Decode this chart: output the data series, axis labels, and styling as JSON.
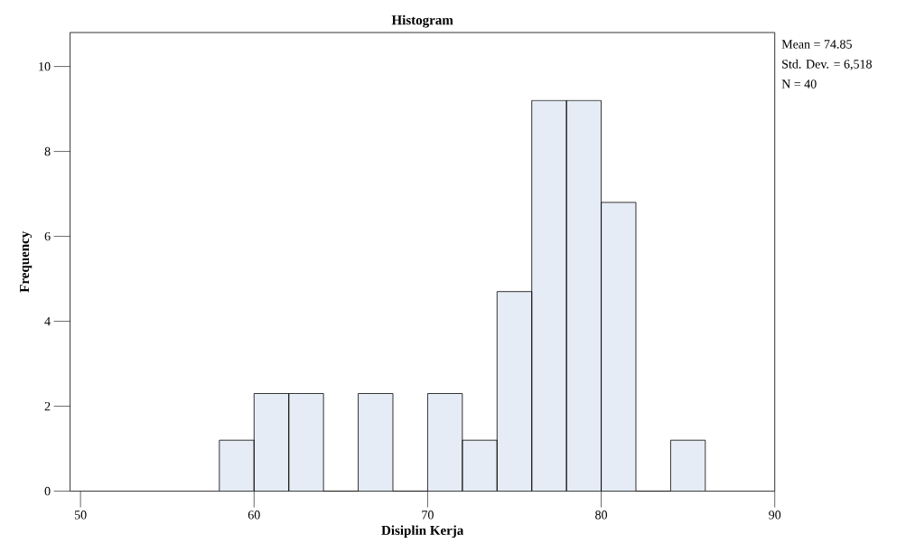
{
  "chart_data": {
    "type": "histogram",
    "title": "Histogram",
    "xlabel": "Disiplin Kerja",
    "ylabel": "Frequency",
    "bins": [
      58,
      60,
      62,
      64,
      66,
      68,
      70,
      72,
      74,
      76,
      78,
      80,
      82,
      84,
      86
    ],
    "values": [
      1.2,
      2.3,
      2.3,
      0,
      2.3,
      0,
      2.3,
      1.2,
      4.7,
      9.2,
      9.2,
      6.8,
      0,
      1.2
    ],
    "color": "#e6ecf6",
    "xlim": [
      49.4,
      90
    ],
    "ylim": [
      0,
      10.8
    ],
    "xticks": [
      50,
      60,
      70,
      80,
      90
    ],
    "yticks": [
      0,
      2,
      4,
      6,
      8,
      10
    ],
    "annotations": [
      "Mean = 74.85",
      "Std. Dev. = 6,518",
      "N = 40"
    ]
  }
}
